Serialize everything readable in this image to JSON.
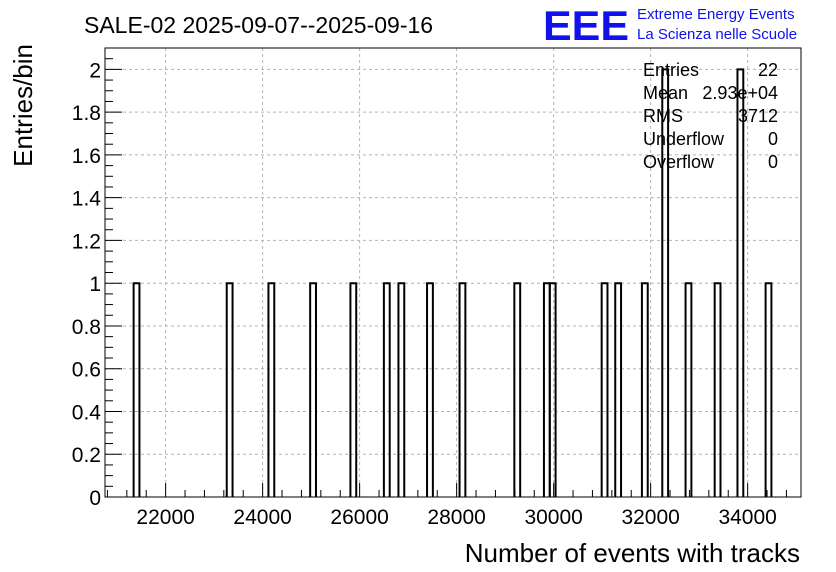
{
  "logo": {
    "letters": "EEE",
    "line1": "Extreme Energy Events",
    "line2": "La Scienza nelle Scuole",
    "color": "#1111ee"
  },
  "stats": {
    "rows": [
      {
        "label": "Entries",
        "value": "22"
      },
      {
        "label": "Mean",
        "value": "2.93e+04"
      },
      {
        "label": "RMS",
        "value": "3712"
      },
      {
        "label": "Underflow",
        "value": "0"
      },
      {
        "label": "Overflow",
        "value": "0"
      }
    ]
  },
  "chart_data": {
    "type": "bar",
    "title": "SALE-02 2025-09-07--2025-09-16",
    "xlabel": "Number of events with tracks",
    "ylabel": "Entries/bin",
    "xlim": [
      20750,
      35100
    ],
    "ylim": [
      0,
      2.1
    ],
    "grid": true,
    "bin_width": 120,
    "xticks": [
      "22000",
      "24000",
      "26000",
      "28000",
      "30000",
      "32000",
      "34000"
    ],
    "yticks": [
      "0",
      "0.2",
      "0.4",
      "0.6",
      "0.8",
      "1",
      "1.2",
      "1.4",
      "1.6",
      "1.8",
      "2"
    ],
    "bins": [
      {
        "x": 21400,
        "count": 1
      },
      {
        "x": 23320,
        "count": 1
      },
      {
        "x": 24180,
        "count": 1
      },
      {
        "x": 25040,
        "count": 1
      },
      {
        "x": 25870,
        "count": 1
      },
      {
        "x": 26560,
        "count": 1
      },
      {
        "x": 26860,
        "count": 1
      },
      {
        "x": 27450,
        "count": 1
      },
      {
        "x": 28120,
        "count": 1
      },
      {
        "x": 29250,
        "count": 1
      },
      {
        "x": 29860,
        "count": 1
      },
      {
        "x": 29980,
        "count": 1
      },
      {
        "x": 31050,
        "count": 1
      },
      {
        "x": 31330,
        "count": 1
      },
      {
        "x": 31880,
        "count": 1
      },
      {
        "x": 32300,
        "count": 2
      },
      {
        "x": 32780,
        "count": 1
      },
      {
        "x": 33380,
        "count": 1
      },
      {
        "x": 33850,
        "count": 2
      },
      {
        "x": 34430,
        "count": 1
      }
    ]
  }
}
